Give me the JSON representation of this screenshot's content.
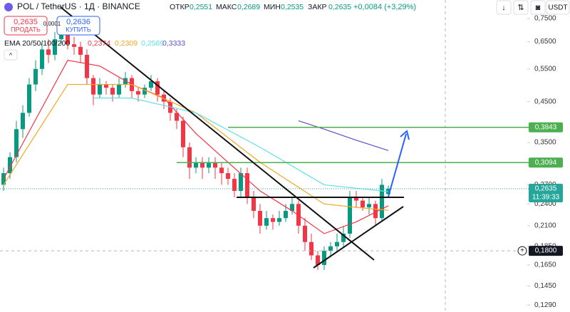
{
  "header": {
    "symbol": "POL / TetherUS · 1Д · BINANCE",
    "ohlc": [
      {
        "label": "ОТКР",
        "value": "0,2551"
      },
      {
        "label": "МАКС",
        "value": "0,2689"
      },
      {
        "label": "МИН",
        "value": "0,2535"
      },
      {
        "label": "ЗАКР",
        "value": "0,2635"
      }
    ],
    "change": "+0,0084 (+3,29%)",
    "currency": "USDT"
  },
  "trade": {
    "sell_price": "0,2635",
    "sell": "ПРОДАТЬ",
    "buy_price": "0,2636",
    "buy": "КУПИТЬ",
    "spread": "0,0001"
  },
  "chart_data": {
    "type": "candlestick",
    "log_scale": true,
    "up_color": "#089981",
    "down_color": "#f23645",
    "open": [
      0.27,
      0.29,
      0.32,
      0.38,
      0.42,
      0.5,
      0.55,
      0.62,
      0.6,
      0.66,
      0.68,
      0.64,
      0.63,
      0.6,
      0.52,
      0.47,
      0.5,
      0.49,
      0.47,
      0.5,
      0.52,
      0.48,
      0.47,
      0.49,
      0.51,
      0.47,
      0.45,
      0.42,
      0.4,
      0.34,
      0.3,
      0.31,
      0.3,
      0.31,
      0.3,
      0.29,
      0.28,
      0.26,
      0.29,
      0.25,
      0.23,
      0.21,
      0.22,
      0.215,
      0.22,
      0.23,
      0.24,
      0.21,
      0.19,
      0.175,
      0.165,
      0.18,
      0.185,
      0.19,
      0.2,
      0.25,
      0.245,
      0.235,
      0.24,
      0.22,
      0.2551
    ],
    "high": [
      0.3,
      0.33,
      0.4,
      0.44,
      0.52,
      0.58,
      0.65,
      0.66,
      0.69,
      0.71,
      0.7,
      0.67,
      0.65,
      0.62,
      0.53,
      0.52,
      0.51,
      0.5,
      0.52,
      0.54,
      0.53,
      0.49,
      0.5,
      0.53,
      0.52,
      0.48,
      0.46,
      0.43,
      0.41,
      0.35,
      0.32,
      0.32,
      0.32,
      0.32,
      0.31,
      0.3,
      0.29,
      0.3,
      0.3,
      0.26,
      0.24,
      0.23,
      0.225,
      0.23,
      0.24,
      0.25,
      0.245,
      0.22,
      0.2,
      0.18,
      0.185,
      0.19,
      0.2,
      0.21,
      0.26,
      0.26,
      0.25,
      0.25,
      0.245,
      0.28,
      0.2689
    ],
    "low": [
      0.26,
      0.28,
      0.31,
      0.36,
      0.41,
      0.48,
      0.53,
      0.57,
      0.58,
      0.64,
      0.62,
      0.6,
      0.57,
      0.5,
      0.44,
      0.46,
      0.47,
      0.45,
      0.46,
      0.49,
      0.46,
      0.45,
      0.46,
      0.48,
      0.45,
      0.43,
      0.4,
      0.38,
      0.32,
      0.28,
      0.29,
      0.28,
      0.29,
      0.28,
      0.27,
      0.27,
      0.25,
      0.25,
      0.24,
      0.22,
      0.2,
      0.205,
      0.205,
      0.21,
      0.215,
      0.225,
      0.2,
      0.18,
      0.17,
      0.16,
      0.16,
      0.175,
      0.18,
      0.185,
      0.195,
      0.235,
      0.23,
      0.225,
      0.21,
      0.215,
      0.2535
    ],
    "close": [
      0.29,
      0.32,
      0.38,
      0.42,
      0.5,
      0.55,
      0.62,
      0.6,
      0.66,
      0.68,
      0.64,
      0.63,
      0.6,
      0.52,
      0.47,
      0.5,
      0.49,
      0.47,
      0.5,
      0.52,
      0.48,
      0.47,
      0.49,
      0.51,
      0.47,
      0.45,
      0.42,
      0.4,
      0.34,
      0.3,
      0.31,
      0.3,
      0.31,
      0.3,
      0.29,
      0.28,
      0.26,
      0.29,
      0.25,
      0.23,
      0.21,
      0.22,
      0.215,
      0.22,
      0.23,
      0.24,
      0.21,
      0.19,
      0.175,
      0.165,
      0.18,
      0.185,
      0.19,
      0.2,
      0.25,
      0.245,
      0.235,
      0.24,
      0.22,
      0.27,
      0.2635
    ],
    "ema": {
      "label": "EMA 20/50/100/200",
      "series": [
        {
          "color": "#f23645",
          "value_label": "0,2374",
          "x": [
            0,
            10,
            15,
            20,
            25,
            30,
            35,
            40,
            45,
            50,
            55,
            60
          ],
          "values": [
            0.28,
            0.58,
            0.56,
            0.5,
            0.46,
            0.37,
            0.31,
            0.26,
            0.23,
            0.2,
            0.215,
            0.2374
          ]
        },
        {
          "color": "#f5a623",
          "value_label": "0,2309",
          "x": [
            0,
            10,
            20,
            30,
            40,
            50,
            55,
            60
          ],
          "values": [
            0.27,
            0.5,
            0.5,
            0.42,
            0.31,
            0.24,
            0.235,
            0.2309
          ]
        },
        {
          "color": "#5ee0e8",
          "value_label": "0,2589",
          "x": [
            14,
            20,
            30,
            40,
            50,
            60
          ],
          "values": [
            0.46,
            0.46,
            0.42,
            0.34,
            0.27,
            0.2589
          ]
        },
        {
          "color": "#5b4fc9",
          "value_label": "0,3333",
          "x": [
            46,
            50,
            55,
            60
          ],
          "values": [
            0.4,
            0.38,
            0.355,
            0.3333
          ]
        }
      ]
    },
    "ylim": [
      0.1236,
      0.84
    ],
    "yticks": [
      {
        "value": 0.75,
        "label": "0,7500"
      },
      {
        "value": 0.65,
        "label": "0,6500"
      },
      {
        "value": 0.55,
        "label": "0,5500"
      },
      {
        "value": 0.45,
        "label": "0,4500"
      },
      {
        "value": 0.35,
        "label": "0,3500"
      },
      {
        "value": 0.305,
        "label": "0,3050"
      },
      {
        "value": 0.27,
        "label": "0,2700"
      },
      {
        "value": 0.24,
        "label": "0,2400"
      },
      {
        "value": 0.21,
        "label": "0,2100"
      },
      {
        "value": 0.185,
        "label": "0,1850"
      },
      {
        "value": 0.165,
        "label": "0,1650"
      },
      {
        "value": 0.145,
        "label": "0,1450"
      },
      {
        "value": 0.129,
        "label": "0,1290"
      }
    ],
    "levels": [
      {
        "value": 0.3843,
        "label": "0,3843",
        "color": "#4caf50"
      },
      {
        "value": 0.3094,
        "label": "0,3094",
        "color": "#4caf50"
      }
    ],
    "price": {
      "value": 0.2635,
      "label": "0,2635",
      "time": "11:39:33",
      "color": "#26a69a"
    },
    "crosshair": {
      "value": 0.18,
      "label": "0,1800"
    }
  }
}
